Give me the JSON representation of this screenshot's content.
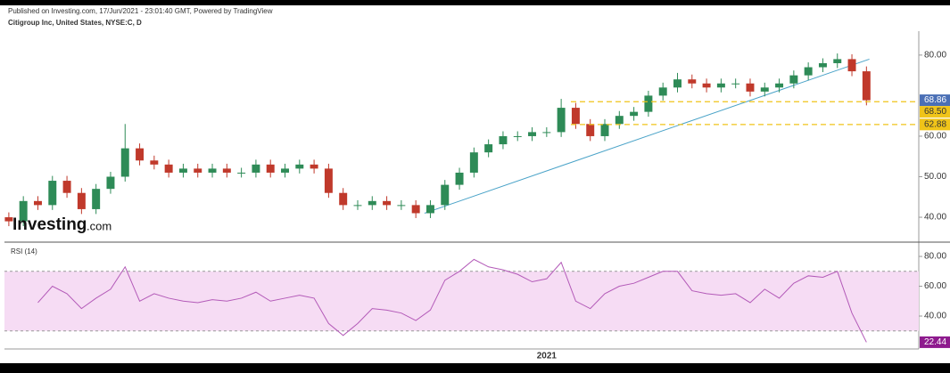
{
  "header": {
    "published": "Published on Investing.com, 17/Jun/2021 - 23:01:40 GMT, Powered by TradingView",
    "symbol": "Citigroup Inc, United States, NYSE:C, D",
    "logo": "Investing",
    "logo_suffix": ".com"
  },
  "chart_data": [
    {
      "type": "candlestick",
      "categories": [
        null,
        null,
        null,
        null,
        null,
        null,
        null,
        null,
        null,
        null,
        null,
        null,
        null,
        null,
        null,
        null,
        null,
        null,
        null,
        null,
        null,
        null,
        null,
        null,
        null,
        null,
        null,
        null,
        null,
        null,
        null,
        null,
        null,
        null,
        null,
        null,
        null,
        "2021",
        null,
        null,
        null,
        null,
        null,
        null,
        null,
        null,
        null,
        null,
        null,
        null,
        null,
        null,
        null,
        null,
        null,
        null,
        null,
        null,
        null,
        null
      ],
      "open": [
        40,
        39,
        44,
        43,
        49,
        46,
        42,
        47,
        50,
        57,
        54,
        53,
        51,
        52,
        51,
        52,
        51,
        51,
        53,
        51,
        52,
        53,
        52,
        46,
        43,
        43,
        44,
        43,
        43,
        41,
        43,
        48,
        51,
        56,
        58,
        60,
        60,
        61,
        61,
        67,
        63,
        60,
        63,
        65,
        66,
        70,
        72,
        74,
        73,
        72,
        73,
        73,
        71,
        72,
        73,
        75,
        77,
        78,
        79,
        76
      ],
      "high": [
        41.2,
        45.2,
        45.2,
        50.2,
        50.2,
        47.2,
        48.2,
        51.2,
        63,
        58.2,
        55.2,
        54.2,
        53.2,
        53.2,
        53.2,
        53.2,
        52.2,
        54.2,
        54.2,
        53.2,
        54.2,
        54.2,
        53.2,
        47.2,
        44.2,
        45.2,
        45.2,
        44.2,
        44.2,
        44.2,
        49.2,
        52.2,
        57.2,
        59.2,
        61.2,
        61.2,
        62.2,
        62.2,
        69.2,
        68.2,
        64.2,
        64.2,
        66.2,
        67.2,
        71.2,
        73.2,
        75.6,
        75.2,
        74.2,
        74.2,
        74.2,
        74.2,
        73.2,
        74.2,
        76.2,
        78.2,
        79.2,
        80.4,
        80.2,
        77.2
      ],
      "low": [
        37.8,
        37.8,
        41.8,
        41.8,
        44.8,
        40.8,
        40.8,
        45.8,
        48.8,
        52.8,
        51.8,
        49.8,
        49.8,
        49.8,
        49.8,
        49.8,
        49.8,
        49.8,
        49.8,
        49.8,
        50.8,
        50.8,
        44.8,
        41.8,
        41.8,
        41.8,
        41.8,
        41.8,
        39.8,
        39.8,
        41.8,
        46.8,
        49.8,
        54.8,
        56.8,
        58.8,
        58.8,
        59.8,
        59.8,
        61.8,
        58.8,
        58.8,
        61.8,
        63.8,
        64.8,
        68.8,
        70.8,
        71.8,
        70.8,
        70.8,
        71.8,
        69.8,
        69.8,
        70.8,
        71.8,
        73.8,
        75.8,
        76.8,
        74.8,
        67.6
      ],
      "close": [
        39,
        44,
        43,
        49,
        46,
        42,
        47,
        50,
        57,
        54,
        53,
        51,
        52,
        51,
        52,
        51,
        51,
        53,
        51,
        52,
        53,
        52,
        46,
        43,
        43,
        44,
        43,
        43,
        41,
        43,
        48,
        51,
        56,
        58,
        60,
        60,
        61,
        61,
        67,
        63,
        60,
        63,
        65,
        66,
        70,
        72,
        74,
        73,
        72,
        73,
        73,
        71,
        72,
        73,
        75,
        77,
        78,
        79,
        76,
        68.86
      ],
      "up_color": "#2e8b57",
      "down_color": "#c0392b",
      "xlim": [
        -0.3,
        62.6
      ],
      "ylim": [
        34.3,
        85.9
      ],
      "yticks": [
        {
          "value": 40,
          "label": "40.00"
        },
        {
          "value": 50,
          "label": "50.00"
        },
        {
          "value": 60,
          "label": "60.00"
        },
        {
          "value": 80,
          "label": "80.00"
        }
      ],
      "levels": [
        {
          "value": 68.5,
          "label": "68.50"
        },
        {
          "value": 62.88,
          "label": "62.88"
        }
      ],
      "level_color": "#f0c419",
      "last_color": "#4a6fb5",
      "trendline": {
        "x": [
          28.6,
          59.2
        ],
        "y": [
          41,
          79
        ],
        "color": "#4aa3c8"
      }
    },
    {
      "type": "line",
      "title": "RSI (14)",
      "xlim": [
        -0.3,
        62.6
      ],
      "ylim": [
        22.1,
        86
      ],
      "yticks": [
        {
          "value": 40,
          "label": "40.00"
        },
        {
          "value": 60,
          "label": "60.00"
        },
        {
          "value": 80,
          "label": "80.00"
        }
      ],
      "band": [
        30,
        70
      ],
      "band_color": "#f6dcf4",
      "series": [
        {
          "color": "#b35ab8",
          "values": [
            null,
            null,
            49,
            60,
            55,
            45,
            52,
            58,
            73,
            50,
            55,
            52,
            50,
            49,
            51,
            50,
            52,
            56,
            50,
            52,
            54,
            52,
            35,
            27,
            35,
            45,
            44,
            42,
            37,
            44,
            64,
            70,
            78,
            73,
            71,
            68,
            63,
            65,
            76,
            50,
            45,
            55,
            60,
            62,
            66,
            70,
            70,
            57,
            55,
            54,
            55,
            49,
            58,
            52,
            62,
            67,
            66,
            70,
            42,
            22.44
          ]
        }
      ],
      "last_color": "#8e1b8e"
    }
  ]
}
